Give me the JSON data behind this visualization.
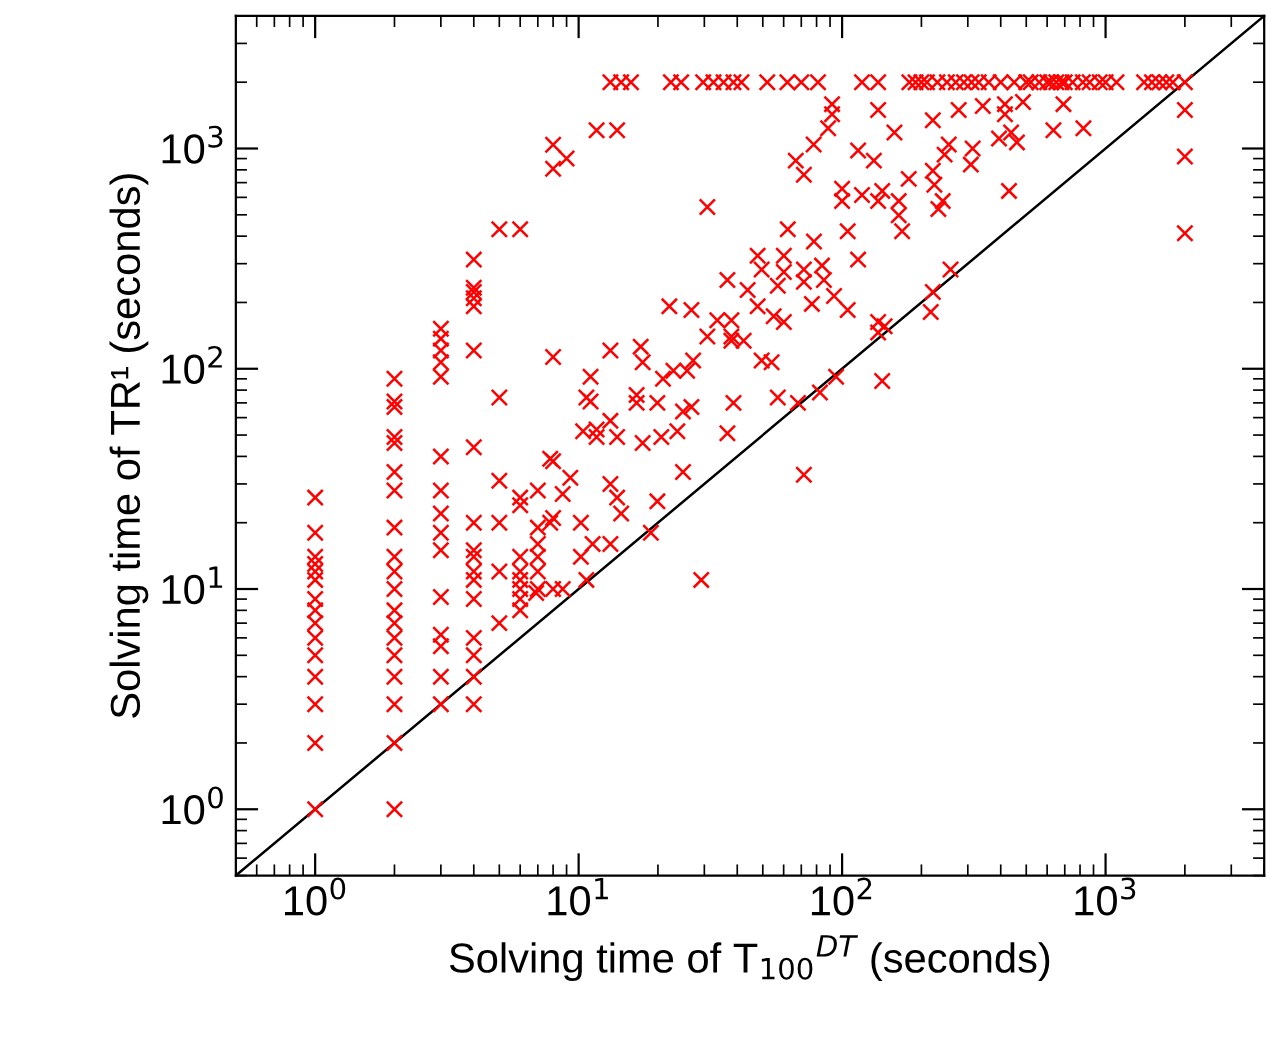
{
  "chart_data": {
    "type": "scatter",
    "xlabel": "Solving time of T$_{100}$$^{DT}$ (seconds)",
    "ylabel": "Solving time of TR¹ (seconds)",
    "log": "xy",
    "grid": false,
    "xlim": [
      0.5,
      4000
    ],
    "ylim": [
      0.5,
      4000
    ],
    "xticks": [
      {
        "value": 1,
        "label": "10$^{0}$"
      },
      {
        "value": 10,
        "label": "10$^{1}$"
      },
      {
        "value": 100,
        "label": "10$^{2}$"
      },
      {
        "value": 1000,
        "label": "10$^{3}$"
      }
    ],
    "yticks": [
      {
        "value": 1,
        "label": "10$^{0}$"
      },
      {
        "value": 10,
        "label": "10$^{1}$"
      },
      {
        "value": 100,
        "label": "10$^{2}$"
      },
      {
        "value": 1000,
        "label": "10$^{3}$"
      }
    ],
    "series": [
      {
        "marker": "cross",
        "color": "#ff0000",
        "x": [
          1,
          1,
          1,
          1,
          1,
          1,
          1,
          1,
          1,
          1,
          1,
          1,
          1,
          1,
          1,
          2,
          2,
          2,
          2,
          2,
          2,
          2,
          2,
          2,
          2,
          2,
          2,
          2,
          2,
          2,
          2,
          2,
          2,
          2,
          3,
          3,
          3,
          3,
          3,
          3,
          3,
          3,
          3,
          3,
          3,
          3,
          3,
          3,
          3,
          4,
          4,
          4,
          4,
          4,
          4,
          4,
          4,
          4,
          4,
          4,
          4,
          4,
          4,
          4,
          4,
          4,
          5,
          5,
          5,
          5,
          5,
          5,
          6,
          6,
          6,
          6,
          6,
          6,
          6,
          6,
          6,
          7,
          7,
          7,
          7,
          7,
          7,
          8,
          8,
          8,
          8,
          8,
          8,
          9,
          11.7,
          14,
          13.2,
          14.5,
          15.8,
          22.4,
          24.5,
          29.7,
          32.5,
          35.5,
          38.7,
          41.5,
          52,
          62,
          70,
          81,
          119,
          137,
          180,
          190,
          200,
          210,
          230,
          250,
          270,
          290,
          310,
          330,
          360,
          400,
          450,
          500,
          520,
          560,
          600,
          620,
          650,
          680,
          700,
          750,
          820,
          870,
          950,
          1000,
          1100,
          1400,
          1500,
          1600,
          1700,
          1800,
          2000,
          2000,
          2000,
          2000,
          91.6,
          91.6,
          88.5,
          137,
          78,
          158,
          221,
          277,
          342,
          415,
          486,
          415,
          634,
          824,
          692,
          254,
          245,
          313,
          308,
          394,
          438,
          461,
          430,
          115,
          132,
          66.7,
          71.6,
          100,
          100,
          119,
          142,
          179,
          221,
          224,
          241,
          232,
          164,
          164,
          169,
          137,
          62.2,
          78.2,
          105,
          115,
          47.8,
          49.5,
          60.1,
          60.1,
          71.6,
          83.9,
          85.3,
          36.7,
          43.8,
          57,
          71.6,
          93.2,
          105,
          76.8,
          38,
          47.8,
          55,
          60.1,
          38,
          42.3,
          49.5,
          54,
          137,
          137,
          145,
          221,
          217,
          258,
          94.9,
          142,
          38.7,
          57,
          68,
          82.4,
          71.6,
          36.7,
          30.8,
          22.1,
          26.8,
          33.6,
          30.8,
          38,
          13.2,
          17.2,
          17.5,
          20.9,
          22.9,
          25.8,
          27.2,
          11.1,
          11.1,
          16.6,
          19.9,
          24.9,
          13.2,
          11.7,
          10.4,
          11.7,
          14,
          17.5,
          20.6,
          23.7,
          26.8,
          16.6,
          10.7,
          7.8,
          9.3,
          8.7,
          10.2,
          13.2,
          14,
          14.5,
          19.9,
          24.9,
          18.8,
          13.2,
          11.3,
          10.2,
          10.7,
          8.7,
          6.9,
          7.8,
          29.2
        ],
        "values": [
          1,
          2,
          3,
          4,
          5,
          6,
          7,
          8,
          9,
          11,
          12,
          13,
          14,
          18,
          26,
          1,
          2,
          3,
          4,
          5,
          6,
          7,
          8,
          10,
          12,
          14,
          19,
          28,
          34,
          46,
          49,
          67,
          71,
          90,
          3,
          4,
          5.5,
          6.2,
          9.2,
          15,
          18,
          22,
          28,
          40,
          92,
          107,
          121,
          137,
          152,
          3,
          4,
          5,
          6,
          9,
          11,
          12,
          14,
          15,
          20,
          44,
          121,
          192,
          209,
          223,
          233,
          313,
          7,
          12,
          20,
          31,
          74,
          430,
          8,
          9,
          10,
          11,
          12,
          14,
          24,
          26,
          430,
          10,
          12,
          14,
          16,
          19,
          28,
          10,
          21,
          38,
          113,
          810,
          1040,
          900,
          1210,
          1210,
          2000,
          2000,
          2000,
          2000,
          2000,
          2000,
          2000,
          2000,
          2000,
          2000,
          2000,
          2000,
          2000,
          2000,
          2000,
          2000,
          2000,
          2000,
          2000,
          2000,
          2000,
          2000,
          2000,
          2000,
          2000,
          2000,
          2000,
          2000,
          2000,
          2000,
          2000,
          2000,
          2000,
          2000,
          2000,
          2000,
          2000,
          2000,
          2000,
          2000,
          2000,
          2000,
          2000,
          2000,
          2000,
          2000,
          2000,
          2000,
          2000,
          1495,
          919,
          412,
          1590,
          1430,
          1236,
          1495,
          1043,
          1183,
          1343,
          1495,
          1560,
          1590,
          1625,
          1430,
          1210,
          1236,
          1590,
          1043,
          938,
          1000,
          845,
          1110,
          1183,
          1066,
          642,
          979,
          881,
          881,
          760,
          656,
          577,
          615,
          642,
          728,
          792,
          684,
          577,
          531,
          577,
          498,
          421,
          577,
          430,
          378,
          421,
          313,
          326,
          282,
          326,
          275,
          282,
          294,
          253,
          253,
          228,
          238,
          248,
          214,
          185,
          197,
          166,
          192,
          173,
          163,
          134,
          134,
          109,
          107,
          163,
          146,
          156,
          223,
          181,
          282,
          92,
          88,
          70,
          74,
          70,
          78,
          33,
          51,
          542,
          192,
          185,
          166,
          140,
          140,
          121,
          126,
          107,
          90,
          98,
          98,
          109,
          92,
          71,
          76,
          70,
          64,
          58,
          53,
          52,
          49,
          49,
          46,
          49,
          52,
          67,
          70,
          74,
          39,
          32,
          27,
          20,
          30,
          26,
          22,
          25,
          34,
          18,
          16,
          16,
          14,
          11,
          10,
          9.6,
          20,
          11
        ]
      },
      {
        "type": "line",
        "color": "#000000",
        "x": [
          0.5,
          4000
        ],
        "values": [
          0.5,
          4000
        ]
      }
    ]
  }
}
